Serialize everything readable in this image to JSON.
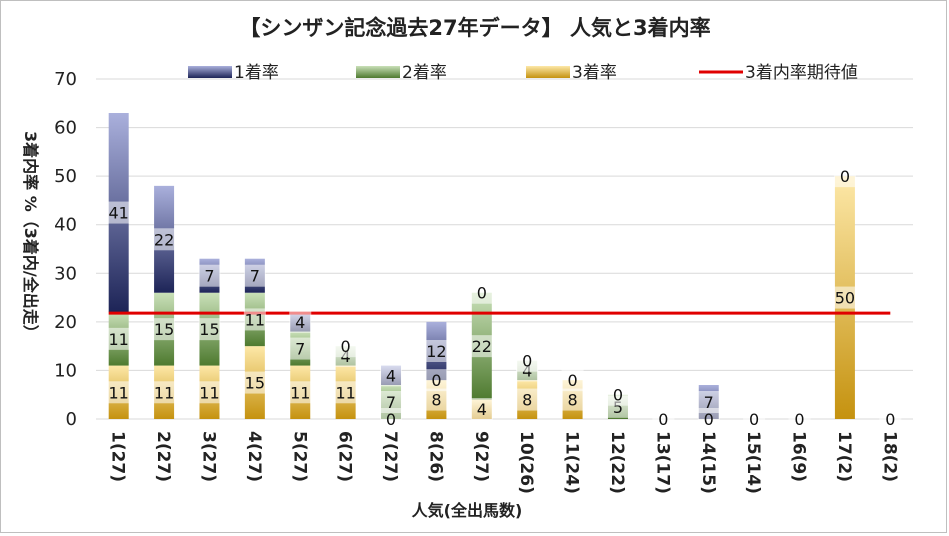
{
  "chart_data": {
    "type": "bar",
    "title": "【シンザン記念過去27年データ】 人気と3着内率",
    "xlabel": "人気(全出馬数)",
    "ylabel": "3着内率 %（3着内/全出走）",
    "ylim": [
      0,
      70
    ],
    "yticks": [
      "0",
      "10",
      "20",
      "30",
      "40",
      "50",
      "60",
      "70"
    ],
    "grid": true,
    "legend": [
      "1着率",
      "2着率",
      "3着率",
      "3着内率期待値"
    ],
    "legend_position": "top",
    "stacked": true,
    "categories": [
      "1(27)",
      "2(27)",
      "3(27)",
      "4(27)",
      "5(27)",
      "6(27)",
      "7(27)",
      "8(26)",
      "9(27)",
      "10(26)",
      "11(24)",
      "12(22)",
      "13(17)",
      "14(15)",
      "15(14)",
      "16(9)",
      "17(2)",
      "18(2)"
    ],
    "series": [
      {
        "name": "3着率",
        "values": [
          11,
          11,
          11,
          15,
          11,
          11,
          0,
          8,
          4,
          8,
          8,
          0,
          0,
          0,
          0,
          0,
          50,
          0
        ],
        "color": "#c5920f"
      },
      {
        "name": "2着率",
        "values": [
          11,
          15,
          15,
          11,
          7,
          4,
          7,
          0,
          22,
          4,
          0,
          5,
          0,
          0,
          0,
          0,
          0,
          0
        ],
        "color": "#4e7a2f"
      },
      {
        "name": "1着率",
        "values": [
          41,
          22,
          7,
          7,
          4,
          0,
          4,
          12,
          0,
          0,
          0,
          0,
          0,
          7,
          0,
          0,
          0,
          0
        ],
        "color": "#1d2457"
      }
    ],
    "labels": [
      [
        "11",
        "11",
        "41"
      ],
      [
        "11",
        "15",
        "22"
      ],
      [
        "11",
        "15",
        "7"
      ],
      [
        "15",
        "11",
        "7"
      ],
      [
        "11",
        "7",
        "4"
      ],
      [
        "11",
        "4",
        "0"
      ],
      [
        "0",
        "7",
        "4"
      ],
      [
        "8",
        "0",
        "12"
      ],
      [
        "4",
        "22",
        "0"
      ],
      [
        "8",
        "4",
        "0"
      ],
      [
        "8",
        "",
        "0"
      ],
      [
        "",
        "5",
        "0"
      ],
      [
        "",
        "",
        "0"
      ],
      [
        "",
        "0",
        "7"
      ],
      [
        "",
        "",
        "0"
      ],
      [
        "",
        "",
        "0"
      ],
      [
        "50",
        "",
        "0"
      ],
      [
        "",
        "",
        "0"
      ]
    ],
    "expected_value": 21.8,
    "expected_color": "#e00000"
  }
}
